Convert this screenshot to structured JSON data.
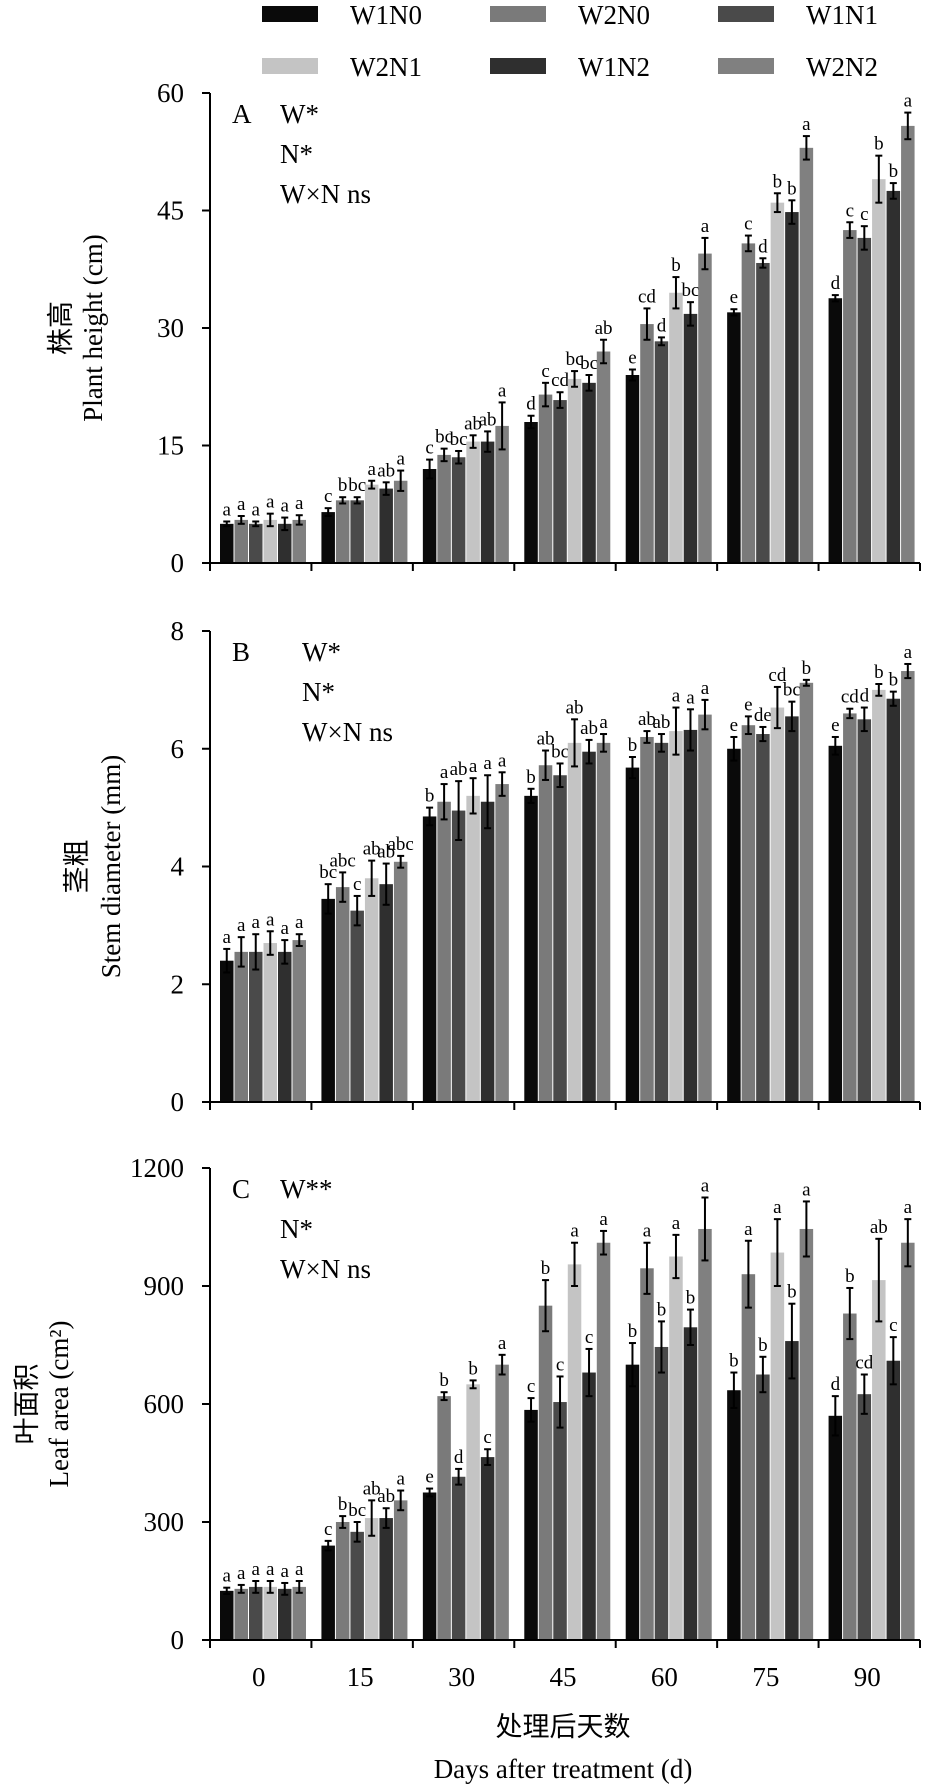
{
  "legend": [
    {
      "name": "W1N0",
      "color": "#0a0a0a"
    },
    {
      "name": "W2N0",
      "color": "#7a7a7a"
    },
    {
      "name": "W1N1",
      "color": "#4a4a4a"
    },
    {
      "name": "W2N1",
      "color": "#c4c4c4"
    },
    {
      "name": "W1N2",
      "color": "#2f2f2f"
    },
    {
      "name": "W2N2",
      "color": "#808080"
    }
  ],
  "x_label_cn": "处理后天数",
  "x_label_en": "Days after treatment (d)",
  "chart_data": [
    {
      "type": "bar",
      "panel": "A",
      "title": "",
      "ylabel_cn": "株高",
      "ylabel_en": "Plant height (cm)",
      "ylim": [
        0,
        60
      ],
      "yticks": [
        0,
        15,
        30,
        45,
        60
      ],
      "stats": [
        "W*",
        "N*",
        "W×N ns"
      ],
      "categories": [
        "0",
        "15",
        "30",
        "45",
        "60",
        "75",
        "90"
      ],
      "series": [
        {
          "name": "W1N0",
          "values": [
            5.0,
            6.5,
            12.0,
            18.0,
            24.0,
            32.0,
            33.8
          ],
          "errors": [
            0.3,
            0.5,
            1.2,
            0.8,
            0.7,
            0.4,
            0.4
          ],
          "letters": [
            "a",
            "c",
            "c",
            "d",
            "e",
            "e",
            "d"
          ]
        },
        {
          "name": "W2N0",
          "values": [
            5.5,
            8.0,
            13.8,
            21.5,
            30.5,
            40.8,
            42.5
          ],
          "errors": [
            0.5,
            0.4,
            0.8,
            1.5,
            2.0,
            1.0,
            1.0
          ],
          "letters": [
            "a",
            "b",
            "bc",
            "c",
            "cd",
            "c",
            "c"
          ]
        },
        {
          "name": "W1N1",
          "values": [
            5.0,
            8.0,
            13.5,
            20.8,
            28.3,
            38.3,
            41.5
          ],
          "errors": [
            0.3,
            0.4,
            0.8,
            1.0,
            0.5,
            0.6,
            1.5
          ],
          "letters": [
            "a",
            "bc",
            "bc",
            "cd",
            "d",
            "d",
            "c"
          ]
        },
        {
          "name": "W2N1",
          "values": [
            5.5,
            10.0,
            15.5,
            23.5,
            34.5,
            46.0,
            49.0
          ],
          "errors": [
            0.8,
            0.5,
            0.8,
            1.0,
            2.0,
            1.2,
            3.0
          ],
          "letters": [
            "a",
            "a",
            "ab",
            "bc",
            "b",
            "b",
            "b"
          ]
        },
        {
          "name": "W1N2",
          "values": [
            5.0,
            9.5,
            15.5,
            23.0,
            31.8,
            44.8,
            47.5
          ],
          "errors": [
            0.8,
            0.8,
            1.3,
            1.0,
            1.5,
            1.5,
            1.0
          ],
          "letters": [
            "a",
            "ab",
            "ab",
            "bc",
            "bc",
            "b",
            "b"
          ]
        },
        {
          "name": "W2N2",
          "values": [
            5.5,
            10.5,
            17.5,
            27.0,
            39.5,
            53.0,
            55.8
          ],
          "errors": [
            0.6,
            1.3,
            3.0,
            1.5,
            2.0,
            1.5,
            1.7
          ],
          "letters": [
            "a",
            "a",
            "a",
            "ab",
            "a",
            "a",
            "a"
          ]
        }
      ]
    },
    {
      "type": "bar",
      "panel": "B",
      "title": "",
      "ylabel_cn": "茎粗",
      "ylabel_en": "Stem diameter (mm)",
      "ylim": [
        0,
        8
      ],
      "yticks": [
        0,
        2,
        4,
        6,
        8
      ],
      "stats": [
        "W*",
        "N*",
        "W×N ns"
      ],
      "categories": [
        "0",
        "15",
        "30",
        "45",
        "60",
        "75",
        "90"
      ],
      "series": [
        {
          "name": "W1N0",
          "values": [
            2.4,
            3.45,
            4.85,
            5.2,
            5.68,
            6.0,
            6.05
          ],
          "errors": [
            0.2,
            0.25,
            0.15,
            0.12,
            0.18,
            0.2,
            0.15
          ],
          "letters": [
            "a",
            "bc",
            "b",
            "b",
            "b",
            "e",
            "e"
          ]
        },
        {
          "name": "W2N0",
          "values": [
            2.55,
            3.65,
            5.1,
            5.72,
            6.2,
            6.4,
            6.6
          ],
          "errors": [
            0.25,
            0.25,
            0.3,
            0.25,
            0.1,
            0.15,
            0.08
          ],
          "letters": [
            "a",
            "abc",
            "a",
            "ab",
            "ab",
            "e",
            "cd"
          ]
        },
        {
          "name": "W1N1",
          "values": [
            2.55,
            3.25,
            4.95,
            5.55,
            6.1,
            6.25,
            6.5
          ],
          "errors": [
            0.3,
            0.25,
            0.5,
            0.2,
            0.15,
            0.12,
            0.2
          ],
          "letters": [
            "a",
            "c",
            "ab",
            "bc",
            "ab",
            "de",
            "d"
          ]
        },
        {
          "name": "W2N1",
          "values": [
            2.7,
            3.8,
            5.2,
            6.1,
            6.3,
            6.7,
            7.0
          ],
          "errors": [
            0.2,
            0.3,
            0.3,
            0.4,
            0.4,
            0.35,
            0.1
          ],
          "letters": [
            "a",
            "ab",
            "a",
            "ab",
            "a",
            "cd",
            "b"
          ]
        },
        {
          "name": "W1N2",
          "values": [
            2.55,
            3.7,
            5.1,
            5.95,
            6.32,
            6.55,
            6.85
          ],
          "errors": [
            0.2,
            0.35,
            0.45,
            0.2,
            0.35,
            0.25,
            0.12
          ],
          "letters": [
            "a",
            "ab",
            "a",
            "ab",
            "a",
            "bc",
            "b"
          ]
        },
        {
          "name": "W2N2",
          "values": [
            2.75,
            4.08,
            5.4,
            6.1,
            6.58,
            7.12,
            7.32
          ],
          "errors": [
            0.1,
            0.1,
            0.2,
            0.15,
            0.25,
            0.05,
            0.12
          ],
          "letters": [
            "a",
            "abc",
            "a",
            "a",
            "a",
            "b",
            "a"
          ]
        }
      ]
    },
    {
      "type": "bar",
      "panel": "C",
      "title": "",
      "ylabel_cn": "叶面积",
      "ylabel_en": "Leaf area (cm²)",
      "ylim": [
        0,
        1200
      ],
      "yticks": [
        0,
        300,
        600,
        900,
        1200
      ],
      "stats": [
        "W**",
        "N*",
        "W×N ns"
      ],
      "categories": [
        "0",
        "15",
        "30",
        "45",
        "60",
        "75",
        "90"
      ],
      "series": [
        {
          "name": "W1N0",
          "values": [
            125,
            240,
            375,
            585,
            700,
            635,
            570
          ],
          "errors": [
            8,
            12,
            10,
            30,
            55,
            45,
            50
          ],
          "letters": [
            "a",
            "c",
            "e",
            "c",
            "b",
            "b",
            "d"
          ]
        },
        {
          "name": "W2N0",
          "values": [
            130,
            300,
            620,
            850,
            945,
            930,
            830
          ],
          "errors": [
            10,
            15,
            10,
            65,
            65,
            85,
            65
          ],
          "letters": [
            "a",
            "b",
            "b",
            "b",
            "a",
            "a",
            "b"
          ]
        },
        {
          "name": "W1N1",
          "values": [
            135,
            275,
            415,
            605,
            745,
            675,
            625
          ],
          "errors": [
            15,
            25,
            20,
            65,
            65,
            45,
            50
          ],
          "letters": [
            "a",
            "bc",
            "d",
            "c",
            "b",
            "b",
            "cd"
          ]
        },
        {
          "name": "W2N1",
          "values": [
            135,
            310,
            650,
            955,
            975,
            985,
            915
          ],
          "errors": [
            15,
            45,
            10,
            55,
            55,
            85,
            105
          ],
          "letters": [
            "a",
            "ab",
            "b",
            "a",
            "a",
            "a",
            "ab"
          ]
        },
        {
          "name": "W1N2",
          "values": [
            130,
            310,
            465,
            680,
            795,
            760,
            710
          ],
          "errors": [
            15,
            25,
            20,
            60,
            45,
            95,
            60
          ],
          "letters": [
            "a",
            "ab",
            "c",
            "c",
            "b",
            "b",
            "c"
          ]
        },
        {
          "name": "W2N2",
          "values": [
            135,
            355,
            700,
            1010,
            1045,
            1045,
            1010
          ],
          "errors": [
            15,
            25,
            25,
            30,
            80,
            70,
            60
          ],
          "letters": [
            "a",
            "a",
            "a",
            "a",
            "a",
            "a",
            "a"
          ]
        }
      ]
    }
  ]
}
